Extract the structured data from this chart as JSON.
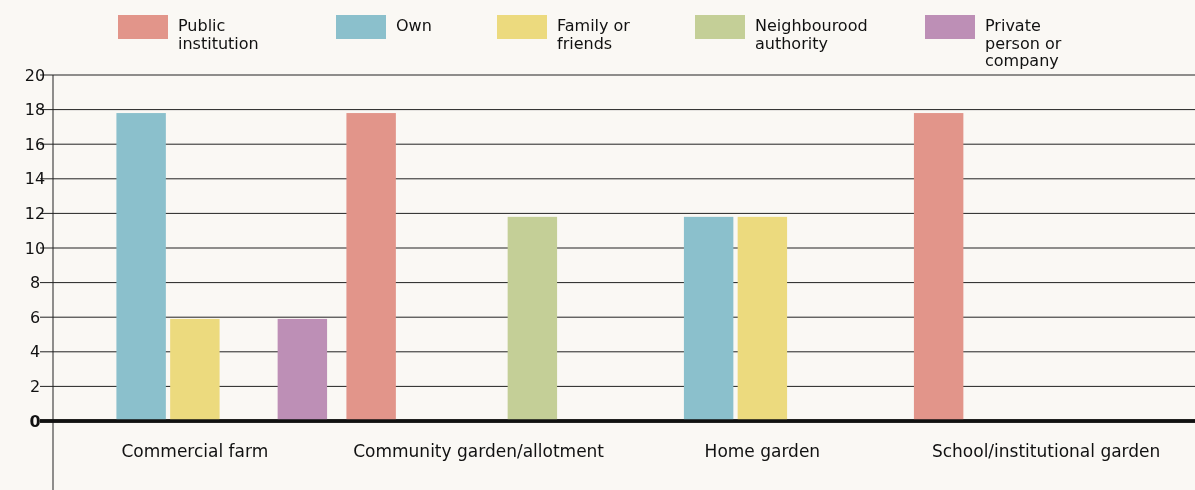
{
  "chart_data": {
    "type": "bar",
    "categories": [
      "Commercial farm",
      "Community garden/allotment",
      "Home garden",
      "School/institutional garden"
    ],
    "series": [
      {
        "name": "Public institution",
        "color": "#e2958a",
        "values": [
          0,
          17.8,
          0,
          17.8
        ]
      },
      {
        "name": "Own",
        "color": "#8bc0cc",
        "values": [
          17.8,
          0,
          11.8,
          0
        ]
      },
      {
        "name": "Family or friends",
        "color": "#ecda7e",
        "values": [
          5.9,
          0,
          11.8,
          0
        ]
      },
      {
        "name": "Neighbourood authority",
        "color": "#c4cf97",
        "values": [
          0,
          11.8,
          0,
          0
        ]
      },
      {
        "name": "Private person or company",
        "color": "#bd8fb6",
        "values": [
          5.9,
          0,
          0,
          0
        ]
      }
    ],
    "ylim": [
      0,
      20
    ],
    "yticks": [
      0,
      2,
      4,
      6,
      8,
      10,
      12,
      14,
      16,
      18,
      20
    ],
    "grid": "y",
    "legend": "top"
  }
}
